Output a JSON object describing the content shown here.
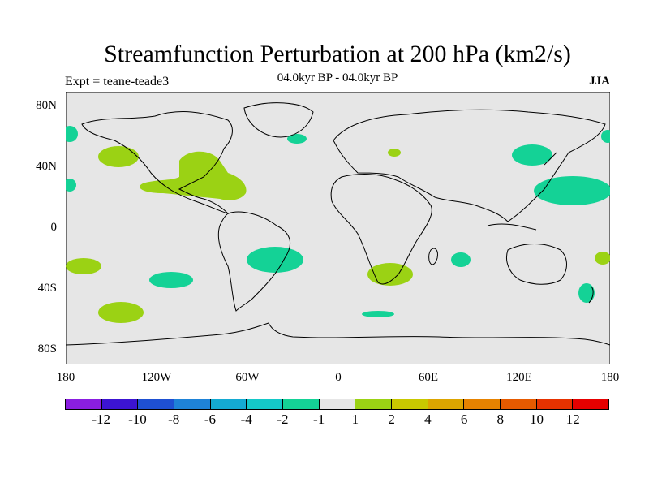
{
  "title": "Streamfunction Perturbation at 200 hPa (km2/s)",
  "experiment": "Expt = teane-teade3",
  "period": "04.0kyr BP - 04.0kyr BP",
  "season": "JJA",
  "lat_labels": [
    "80N",
    "40N",
    "0",
    "40S",
    "80S"
  ],
  "lon_labels": [
    "180",
    "120W",
    "60W",
    "0",
    "60E",
    "120E",
    "180"
  ],
  "colorbar": {
    "colors": [
      "#8a1ee0",
      "#3c14d2",
      "#1e50d2",
      "#1e82d7",
      "#14aad2",
      "#14c8c8",
      "#14d296",
      "#e6e6e6",
      "#9bd214",
      "#c8c800",
      "#dca500",
      "#e68200",
      "#e65a00",
      "#e63200",
      "#e60000"
    ],
    "labels": [
      "-12",
      "-10",
      "-8",
      "-6",
      "-4",
      "-2",
      "-1",
      "1",
      "2",
      "4",
      "6",
      "8",
      "10",
      "12"
    ]
  },
  "map": {
    "land_color": "#e6e6e6",
    "positive_color": "#9bd214",
    "negative_color": "#14d296"
  }
}
